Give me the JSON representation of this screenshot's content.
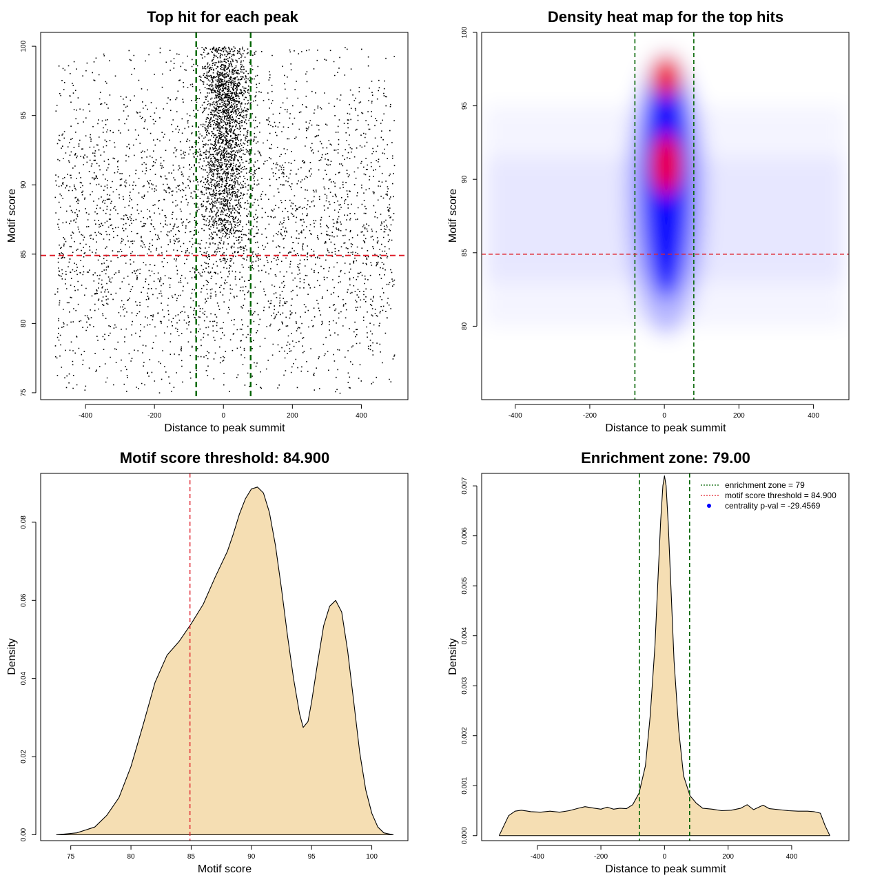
{
  "colors": {
    "scatter_point": "#000000",
    "enrichment_line": "#006400",
    "threshold_line": "#e0232e",
    "density_fill": "#f5deb3",
    "heat_low": "#ffffff",
    "heat_mid": "#0000ff",
    "heat_high": "#ff0000",
    "legend_point": "#0000ff"
  },
  "chart_data": [
    {
      "id": "scatter",
      "type": "scatter",
      "title": "Top hit for each peak",
      "xlabel": "Distance to peak summit",
      "ylabel": "Motif score",
      "xlim": [
        -530,
        535
      ],
      "ylim": [
        74.5,
        101
      ],
      "xticks": [
        -400,
        -200,
        0,
        200,
        400
      ],
      "yticks": [
        75,
        80,
        85,
        90,
        95,
        100
      ],
      "grid": false,
      "vlines": [
        -79,
        79
      ],
      "hline": 84.9,
      "distribution": {
        "background_points": 7000,
        "central_points": 5000,
        "x_range": [
          -490,
          495
        ],
        "y_range": [
          75,
          100
        ],
        "central_x_sd": 35,
        "central_y_modes": [
          91,
          97
        ]
      }
    },
    {
      "id": "heatmap",
      "type": "heatmap",
      "title": "Density heat map for the top hits",
      "xlabel": "Distance to peak summit",
      "ylabel": "Motif score",
      "xlim": [
        -490,
        495
      ],
      "ylim": [
        75,
        100
      ],
      "xticks": [
        -400,
        -200,
        0,
        200,
        400
      ],
      "yticks": [
        80,
        85,
        90,
        95,
        100
      ],
      "grid": false,
      "vlines": [
        -79,
        79
      ],
      "hline": 84.9,
      "hotspots": [
        {
          "x": 5,
          "y": 91,
          "peak": "red"
        },
        {
          "x": 5,
          "y": 97,
          "peak": "red"
        }
      ]
    },
    {
      "id": "score-density",
      "type": "area",
      "title": "Motif score threshold: 84.900",
      "xlabel": "Motif score",
      "ylabel": "Density",
      "xlim": [
        72.5,
        103
      ],
      "ylim": [
        -0.0015,
        0.0925
      ],
      "xticks": [
        75,
        80,
        85,
        90,
        95,
        100
      ],
      "yticks": [
        0.0,
        0.02,
        0.04,
        0.06,
        0.08
      ],
      "ytick_labels": [
        "0.00",
        "0.02",
        "0.04",
        "0.06",
        "0.08"
      ],
      "grid": false,
      "vline": 84.9,
      "x": [
        73.8,
        75.5,
        77.0,
        78.0,
        79.0,
        80.0,
        81.0,
        82.0,
        83.0,
        84.0,
        85.0,
        86.0,
        87.0,
        88.0,
        88.5,
        89.0,
        89.5,
        90.0,
        90.5,
        91.0,
        91.5,
        92.0,
        92.5,
        93.0,
        93.5,
        94.0,
        94.3,
        94.7,
        95.0,
        95.5,
        96.0,
        96.5,
        97.0,
        97.5,
        98.0,
        98.5,
        99.0,
        99.5,
        100.0,
        100.5,
        101.0,
        101.8
      ],
      "y": [
        0.0,
        0.0005,
        0.002,
        0.005,
        0.0095,
        0.0175,
        0.028,
        0.039,
        0.046,
        0.0495,
        0.054,
        0.059,
        0.066,
        0.0725,
        0.077,
        0.082,
        0.086,
        0.0885,
        0.089,
        0.0875,
        0.0825,
        0.074,
        0.063,
        0.051,
        0.04,
        0.031,
        0.0275,
        0.029,
        0.034,
        0.044,
        0.0535,
        0.0585,
        0.06,
        0.057,
        0.047,
        0.034,
        0.021,
        0.0115,
        0.0055,
        0.002,
        0.0005,
        0.0
      ]
    },
    {
      "id": "distance-density",
      "type": "area",
      "title": "Enrichment zone: 79.00",
      "xlabel": "Distance to peak summit",
      "ylabel": "Density",
      "xlim": [
        -575,
        580
      ],
      "ylim": [
        -0.0001,
        0.00725
      ],
      "xticks": [
        -400,
        -200,
        0,
        200,
        400
      ],
      "yticks": [
        0.0,
        0.001,
        0.002,
        0.003,
        0.004,
        0.005,
        0.006,
        0.007
      ],
      "ytick_labels": [
        "0.000",
        "0.001",
        "0.002",
        "0.003",
        "0.004",
        "0.005",
        "0.006",
        "0.007"
      ],
      "grid": false,
      "vlines": [
        -79,
        79
      ],
      "x": [
        -520,
        -505,
        -490,
        -470,
        -450,
        -420,
        -390,
        -360,
        -330,
        -300,
        -270,
        -250,
        -220,
        -200,
        -180,
        -160,
        -140,
        -120,
        -100,
        -80,
        -60,
        -45,
        -30,
        -20,
        -12,
        -5,
        0,
        5,
        12,
        20,
        30,
        45,
        60,
        80,
        100,
        120,
        150,
        180,
        210,
        240,
        260,
        280,
        310,
        330,
        360,
        390,
        420,
        450,
        470,
        490,
        505,
        520
      ],
      "y": [
        0.0,
        0.0002,
        0.0004,
        0.00049,
        0.00051,
        0.00048,
        0.00047,
        0.00049,
        0.00047,
        0.0005,
        0.00055,
        0.00058,
        0.00055,
        0.00053,
        0.00057,
        0.00053,
        0.00055,
        0.00054,
        0.00062,
        0.00085,
        0.0014,
        0.0024,
        0.0038,
        0.0052,
        0.0063,
        0.007,
        0.0072,
        0.007,
        0.0062,
        0.005,
        0.0035,
        0.0021,
        0.0012,
        0.0008,
        0.00065,
        0.00055,
        0.00053,
        0.0005,
        0.00051,
        0.00055,
        0.00062,
        0.00052,
        0.00061,
        0.00054,
        0.00052,
        0.0005,
        0.00049,
        0.00049,
        0.00048,
        0.00045,
        0.0002,
        0.0
      ]
    }
  ],
  "legend": {
    "items": [
      {
        "label": "enrichment zone = 79",
        "style": "line",
        "color_key": "enrichment_line"
      },
      {
        "label": "motif score threshold = 84.900",
        "style": "line",
        "color_key": "threshold_line"
      },
      {
        "label": "centrality p-val = -29.4569",
        "style": "point",
        "color_key": "legend_point"
      }
    ],
    "position": "top-right"
  }
}
